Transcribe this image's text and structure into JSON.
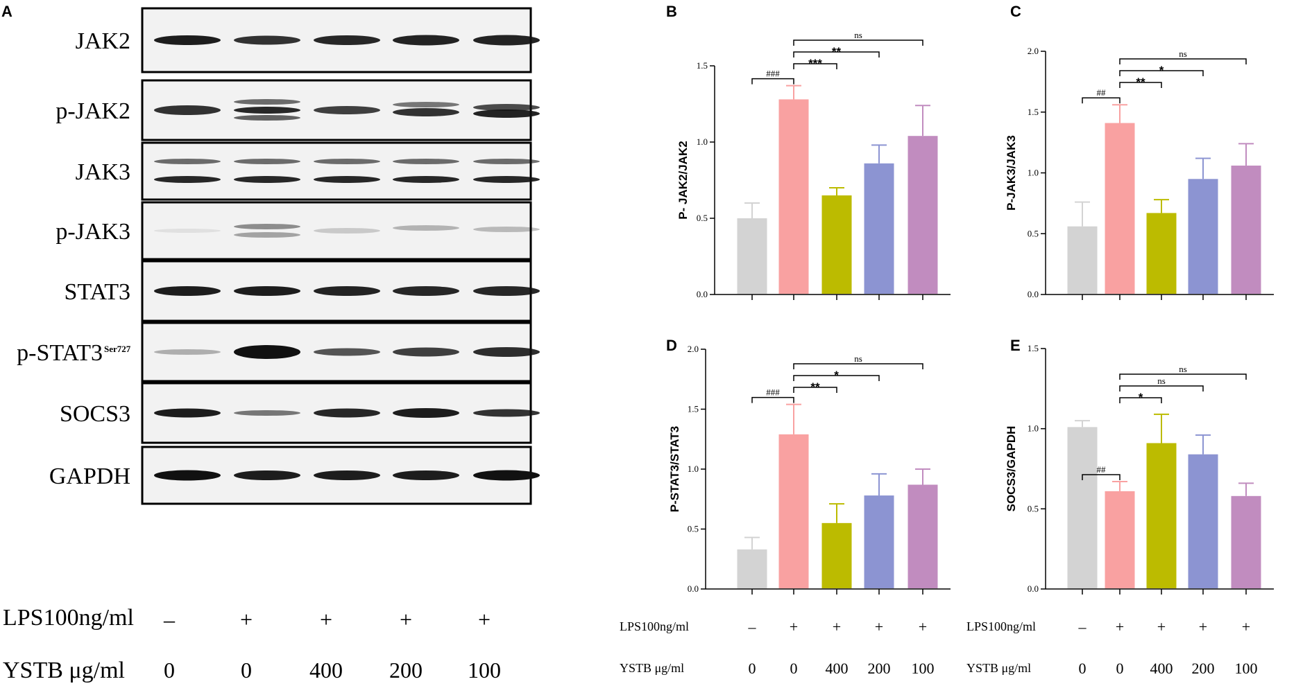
{
  "panels": {
    "A": "A",
    "B": "B",
    "C": "C",
    "D": "D",
    "E": "E"
  },
  "blots": {
    "labels": [
      "JAK2",
      "p-JAK2",
      "JAK3",
      "p-JAK3",
      "STAT3",
      "p-STAT3",
      "SOCS3",
      "GAPDH"
    ],
    "pstat3_superscript": "Ser727"
  },
  "conditions": {
    "lps_label_big": "LPS100ng/ml",
    "ystb_label_big": "YSTB μg/ml",
    "lps_label_small": "LPS100ng/ml",
    "ystb_label_small": "YSTB μg/ml",
    "lps": [
      "–",
      "+",
      "+",
      "+",
      "+"
    ],
    "ystb": [
      "0",
      "0",
      "400",
      "200",
      "100"
    ]
  },
  "colors": [
    "#d3d3d3",
    "#f9a1a1",
    "#bcbb00",
    "#8c94d2",
    "#c18cbf"
  ],
  "chart_data": [
    {
      "panel": "B",
      "type": "bar",
      "ylabel": "P- JAK2/JAK2",
      "ylim": [
        0,
        1.5
      ],
      "yticks": [
        "0.0",
        "0.5",
        "1.0",
        "1.5"
      ],
      "values": [
        0.5,
        1.28,
        0.65,
        0.86,
        1.04
      ],
      "errors": [
        0.1,
        0.09,
        0.05,
        0.12,
        0.2
      ],
      "comparisons": [
        {
          "from": 0,
          "to": 1,
          "text": "###"
        },
        {
          "from": 1,
          "to": 2,
          "text": "***"
        },
        {
          "from": 1,
          "to": 3,
          "text": "**"
        },
        {
          "from": 1,
          "to": 4,
          "text": "ns"
        }
      ]
    },
    {
      "panel": "C",
      "type": "bar",
      "ylabel": "P-JAK3/JAK3",
      "ylim": [
        0,
        2.0
      ],
      "yticks": [
        "0.0",
        "0.5",
        "1.0",
        "1.5",
        "2.0"
      ],
      "values": [
        0.56,
        1.41,
        0.67,
        0.95,
        1.06
      ],
      "errors": [
        0.2,
        0.15,
        0.11,
        0.17,
        0.18
      ],
      "comparisons": [
        {
          "from": 0,
          "to": 1,
          "text": "##"
        },
        {
          "from": 1,
          "to": 2,
          "text": "**"
        },
        {
          "from": 1,
          "to": 3,
          "text": "*"
        },
        {
          "from": 1,
          "to": 4,
          "text": "ns"
        }
      ]
    },
    {
      "panel": "D",
      "type": "bar",
      "ylabel": "P-STAT3/STAT3",
      "ylim": [
        0,
        2.0
      ],
      "yticks": [
        "0.0",
        "0.5",
        "1.0",
        "1.5",
        "2.0"
      ],
      "values": [
        0.33,
        1.29,
        0.55,
        0.78,
        0.87
      ],
      "errors": [
        0.1,
        0.25,
        0.16,
        0.18,
        0.13
      ],
      "comparisons": [
        {
          "from": 0,
          "to": 1,
          "text": "###"
        },
        {
          "from": 1,
          "to": 2,
          "text": "**"
        },
        {
          "from": 1,
          "to": 3,
          "text": "*"
        },
        {
          "from": 1,
          "to": 4,
          "text": "ns"
        }
      ]
    },
    {
      "panel": "E",
      "type": "bar",
      "ylabel": "SOCS3/GAPDH",
      "ylim": [
        0,
        1.5
      ],
      "yticks": [
        "0.0",
        "0.5",
        "1.0",
        "1.5"
      ],
      "values": [
        1.01,
        0.61,
        0.91,
        0.84,
        0.58
      ],
      "errors": [
        0.04,
        0.06,
        0.18,
        0.12,
        0.08
      ],
      "comparisons": [
        {
          "from": 0,
          "to": 1,
          "text": "##"
        },
        {
          "from": 1,
          "to": 2,
          "text": "*"
        },
        {
          "from": 1,
          "to": 3,
          "text": "ns"
        },
        {
          "from": 1,
          "to": 4,
          "text": "ns"
        }
      ]
    }
  ]
}
